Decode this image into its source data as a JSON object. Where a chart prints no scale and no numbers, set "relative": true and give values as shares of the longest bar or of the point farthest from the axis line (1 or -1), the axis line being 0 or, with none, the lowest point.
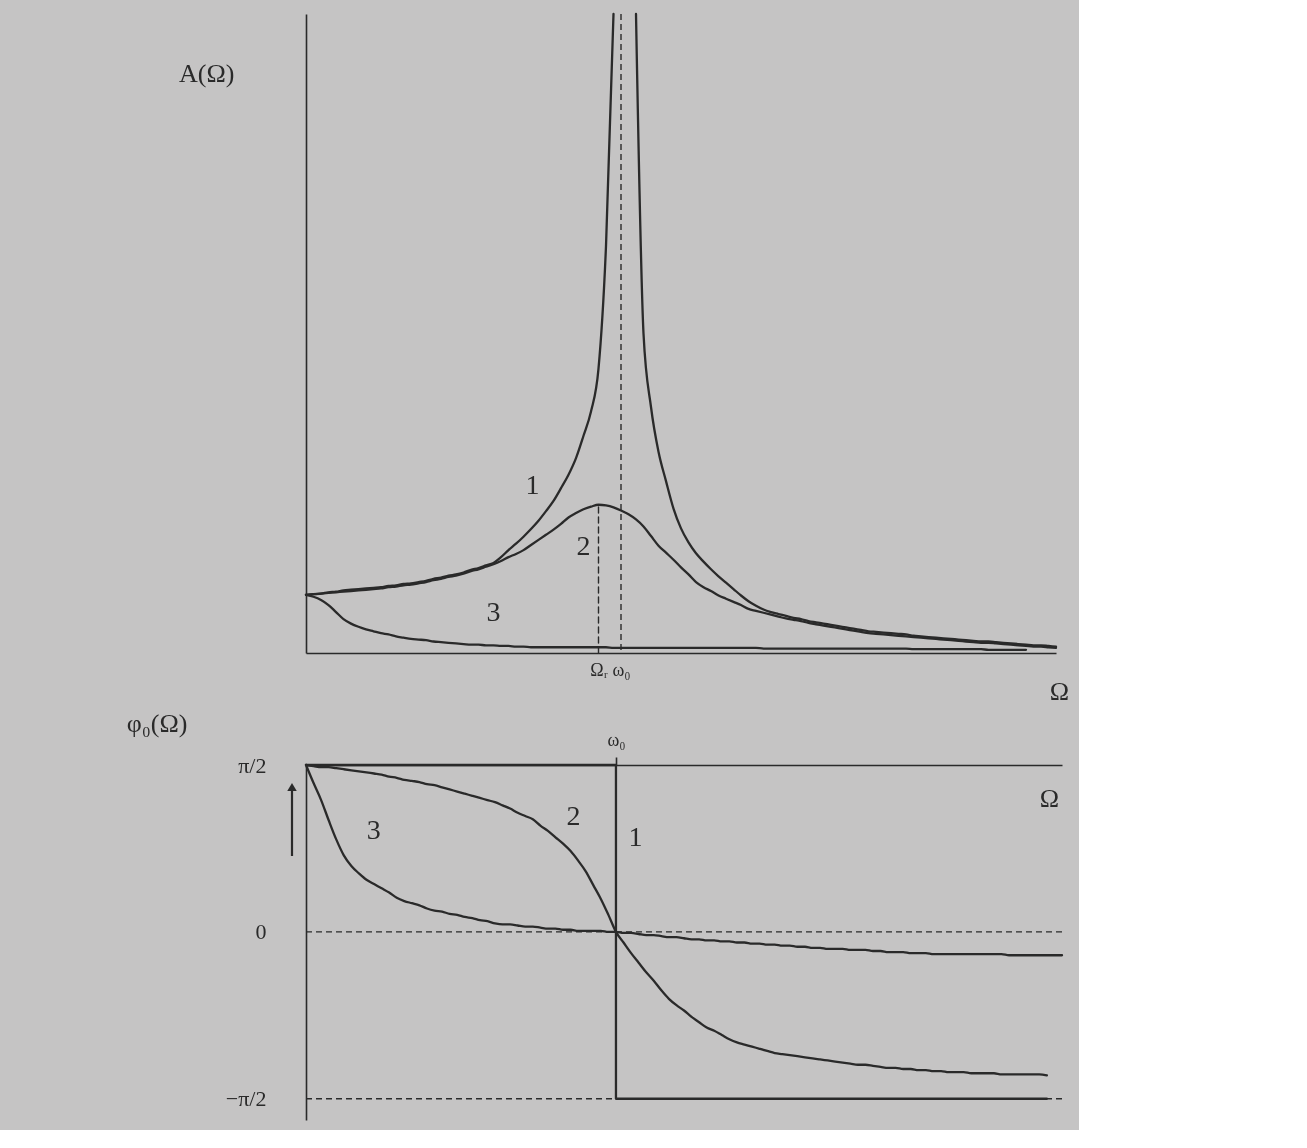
{
  "chart_data": [
    {
      "type": "line",
      "relative": true,
      "ylabel": "A(Ω)",
      "xlabel": "Ω",
      "categories": [
        null,
        null,
        null,
        null,
        null,
        null,
        null,
        null,
        null,
        null,
        null,
        null,
        null,
        null,
        null,
        null,
        null,
        null,
        null,
        null,
        null,
        null,
        null,
        null,
        null,
        null,
        null,
        null,
        null,
        null,
        null,
        null,
        null,
        null,
        null,
        null,
        null,
        null,
        null,
        "Ωᵣ",
        null,
        null,
        "ω₀",
        null,
        null,
        null,
        null,
        null,
        null,
        null,
        null,
        null,
        null,
        null,
        null,
        null,
        null,
        null,
        null,
        null,
        null,
        null,
        null,
        null,
        null,
        null,
        null,
        null,
        null,
        null,
        null,
        null,
        null,
        null,
        null,
        null,
        null,
        null,
        null,
        null,
        null,
        null,
        null,
        null,
        null,
        null,
        null,
        null,
        null,
        null,
        null,
        null,
        null,
        null,
        null,
        null,
        null,
        null,
        null,
        null,
        null
      ],
      "series": [
        {
          "name": "1",
          "color": "#2a2a2a",
          "values": [
            0.091,
            0.092,
            0.093,
            0.095,
            0.096,
            0.098,
            0.099,
            0.1,
            0.101,
            0.102,
            0.103,
            0.105,
            0.106,
            0.108,
            0.109,
            0.111,
            0.113,
            0.116,
            0.118,
            0.121,
            0.123,
            0.126,
            0.13,
            0.133,
            0.137,
            0.141,
            0.15,
            0.161,
            0.171,
            0.182,
            0.194,
            0.207,
            0.222,
            0.238,
            0.258,
            0.279,
            0.305,
            0.34,
            0.378,
            0.445,
            0.637,
            1,
            null,
            null,
            null,
            null,
            null,
            null,
            null,
            null,
            null,
            null,
            null,
            null,
            null,
            null,
            null,
            null,
            null,
            null,
            null,
            null,
            null,
            null,
            null,
            null,
            null,
            null,
            null,
            null,
            null,
            null,
            null,
            null,
            null,
            null,
            null,
            null,
            null,
            null,
            null,
            null,
            null,
            null,
            null,
            null,
            null,
            null,
            null,
            null,
            null,
            null,
            null,
            null,
            null,
            null,
            null,
            null,
            null,
            null,
            null
          ]
        },
        {
          "name": "2",
          "color": "#2a2a2a",
          "values": [
            0.091,
            0.092,
            0.093,
            0.094,
            0.095,
            0.096,
            0.097,
            0.098,
            0.099,
            0.1,
            0.101,
            0.103,
            0.104,
            0.106,
            0.107,
            0.109,
            0.111,
            0.114,
            0.116,
            0.119,
            0.121,
            0.124,
            0.128,
            0.131,
            0.135,
            0.139,
            0.144,
            0.15,
            0.155,
            0.161,
            0.169,
            0.177,
            0.185,
            0.193,
            0.202,
            0.212,
            0.219,
            0.225,
            0.229,
            0.232,
            0.231,
            0.228,
            0.223,
            0.217,
            0.209,
            0.198,
            0.183,
            0.168,
            0.157,
            0.146,
            0.134,
            0.123,
            0.111,
            0.103,
            0.097,
            0.09,
            0.085,
            0.08,
            0.075,
            0.069,
            0.066,
            0.063,
            0.06,
            0.057,
            0.054,
            0.052,
            0.05,
            0.047,
            0.045,
            0.043,
            0.041,
            0.039,
            0.037,
            0.035,
            0.033,
            0.031,
            0.03,
            0.029,
            0.028,
            0.027,
            0.026,
            0.025,
            0.024,
            0.023,
            0.022,
            0.021,
            0.02,
            0.019,
            0.018,
            0.017,
            0.016,
            0.016,
            0.015,
            0.014,
            0.013,
            0.012,
            0.011,
            0.01,
            0.01,
            0.009,
            0.008
          ]
        },
        {
          "name": "3",
          "color": "#2a2a2a",
          "values": [
            0.091,
            0.088,
            0.083,
            0.075,
            0.064,
            0.053,
            0.046,
            0.041,
            0.037,
            0.034,
            0.031,
            0.029,
            0.026,
            0.024,
            0.022,
            0.021,
            0.02,
            0.018,
            0.017,
            0.016,
            0.015,
            0.014,
            0.013,
            0.013,
            0.012,
            0.012,
            0.011,
            0.011,
            0.01,
            0.01,
            0.009,
            0.009,
            0.009,
            0.009,
            0.009,
            0.009,
            0.009,
            0.009,
            0.009,
            0.009,
            0.009,
            0.008,
            0.008,
            0.008,
            0.008,
            0.008,
            0.008,
            0.008,
            0.008,
            0.008,
            0.008,
            0.008,
            0.008,
            0.008,
            0.008,
            0.008,
            0.008,
            0.008,
            0.008,
            0.008,
            0.008,
            0.007,
            0.007,
            0.007,
            0.007,
            0.007,
            0.007,
            0.007,
            0.007,
            0.007,
            0.007,
            0.007,
            0.007,
            0.007,
            0.007,
            0.007,
            0.007,
            0.007,
            0.007,
            0.007,
            0.007,
            0.006,
            0.006,
            0.006,
            0.006,
            0.006,
            0.006,
            0.006,
            0.006,
            0.006,
            0.006,
            0.005,
            0.005,
            0.005,
            0.005,
            0.005,
            0.005,
            null,
            null,
            null,
            null
          ]
        },
        {
          "color": "#2a2a2a",
          "values": [
            null,
            null,
            null,
            null,
            null,
            null,
            null,
            null,
            null,
            null,
            null,
            null,
            null,
            null,
            null,
            null,
            null,
            null,
            null,
            null,
            null,
            null,
            null,
            null,
            null,
            null,
            null,
            null,
            null,
            null,
            null,
            null,
            null,
            null,
            null,
            null,
            null,
            null,
            null,
            null,
            null,
            null,
            null,
            null,
            1,
            0.5,
            0.385,
            0.315,
            0.269,
            0.226,
            0.195,
            0.173,
            0.156,
            0.143,
            0.131,
            0.12,
            0.11,
            0.1,
            0.09,
            0.081,
            0.074,
            0.068,
            0.064,
            0.061,
            0.058,
            0.055,
            0.053,
            0.05,
            0.048,
            0.046,
            0.044,
            0.042,
            0.04,
            0.038,
            0.036,
            0.034,
            0.033,
            0.032,
            0.031,
            0.03,
            0.029,
            0.027,
            0.026,
            0.025,
            0.024,
            0.023,
            0.022,
            0.021,
            0.02,
            0.019,
            0.018,
            0.018,
            0.017,
            0.016,
            0.015,
            0.014,
            0.013,
            0.012,
            0.012,
            0.011,
            0.01
          ]
        },
        {
          "type": "line",
          "line_style": "dashed",
          "color": "#2a2a2a",
          "x": [
            "Ωᵣ",
            "Ωᵣ"
          ],
          "values": [
            0,
            0.232
          ]
        }
      ],
      "ref_lines": [
        {
          "axis": "x",
          "value": "ω₀",
          "line_style": "dashed",
          "color": "#2a2a2a"
        }
      ]
    },
    {
      "type": "line",
      "ylabel": "φ₀(Ω)",
      "xlabel": "Ω",
      "ylim": [
        -1.77,
        1.57
      ],
      "yticks": [
        {
          "value": 1.57,
          "label": "π/2"
        },
        0,
        {
          "value": -1.57,
          "label": "−π/2"
        }
      ],
      "categories": [
        null,
        null,
        null,
        null,
        null,
        null,
        null,
        null,
        null,
        null,
        null,
        null,
        null,
        null,
        null,
        null,
        null,
        null,
        null,
        null,
        null,
        null,
        null,
        null,
        null,
        null,
        null,
        null,
        null,
        null,
        null,
        null,
        null,
        null,
        null,
        null,
        null,
        null,
        null,
        null,
        null,
        "ω₀",
        null,
        null,
        null,
        null,
        null,
        null,
        null,
        null,
        null,
        null,
        null,
        null,
        null,
        null,
        null,
        null,
        null,
        null,
        null,
        null,
        null,
        null,
        null,
        null,
        null,
        null,
        null,
        null,
        null,
        null,
        null,
        null,
        null,
        null,
        null,
        null,
        null,
        null,
        null,
        null,
        null,
        null,
        null,
        null,
        null,
        null,
        null,
        null,
        null,
        null,
        null,
        null,
        null,
        null,
        null,
        null,
        null,
        null,
        null
      ],
      "series": [
        {
          "name": "1",
          "type": "step",
          "color": "#2a2a2a",
          "values": [
            1.57,
            1.57,
            1.57,
            1.57,
            1.57,
            1.57,
            1.57,
            1.57,
            1.57,
            1.57,
            1.57,
            1.57,
            1.57,
            1.57,
            1.57,
            1.57,
            1.57,
            1.57,
            1.57,
            1.57,
            1.57,
            1.57,
            1.57,
            1.57,
            1.57,
            1.57,
            1.57,
            1.57,
            1.57,
            1.57,
            1.57,
            1.57,
            1.57,
            1.57,
            1.57,
            1.57,
            1.57,
            1.57,
            1.57,
            1.57,
            1.57,
            -1.57,
            -1.57,
            -1.57,
            -1.57,
            -1.57,
            -1.57,
            -1.57,
            -1.57,
            -1.57,
            -1.57,
            -1.57,
            -1.57,
            -1.57,
            -1.57,
            -1.57,
            -1.57,
            -1.57,
            -1.57,
            -1.57,
            -1.57,
            -1.57,
            -1.57,
            -1.57,
            -1.57,
            -1.57,
            -1.57,
            -1.57,
            -1.57,
            -1.57,
            -1.57,
            -1.57,
            -1.57,
            -1.57,
            -1.57,
            -1.57,
            -1.57,
            -1.57,
            -1.57,
            -1.57,
            -1.57,
            -1.57,
            -1.57,
            -1.57,
            -1.57,
            -1.57,
            -1.57,
            -1.57,
            -1.57,
            -1.57,
            -1.57,
            -1.57,
            -1.57,
            -1.57,
            -1.57,
            -1.57,
            -1.57,
            -1.57,
            -1.57,
            null,
            null
          ]
        },
        {
          "name": "2",
          "color": "#2a2a2a",
          "values": [
            1.57,
            1.56,
            1.55,
            1.55,
            1.54,
            1.53,
            1.52,
            1.51,
            1.5,
            1.49,
            1.48,
            1.46,
            1.45,
            1.43,
            1.42,
            1.41,
            1.39,
            1.38,
            1.36,
            1.34,
            1.32,
            1.3,
            1.28,
            1.26,
            1.24,
            1.22,
            1.19,
            1.16,
            1.12,
            1.09,
            1.06,
            1.0,
            0.95,
            0.89,
            0.83,
            0.76,
            0.67,
            0.57,
            0.44,
            0.31,
            0.16,
            0,
            -0.1,
            -0.2,
            -0.29,
            -0.38,
            -0.46,
            -0.55,
            -0.63,
            -0.69,
            -0.74,
            -0.8,
            -0.85,
            -0.9,
            -0.93,
            -0.97,
            -1.01,
            -1.04,
            -1.06,
            -1.08,
            -1.1,
            -1.12,
            -1.14,
            -1.15,
            -1.16,
            -1.17,
            -1.18,
            -1.19,
            -1.2,
            -1.21,
            -1.22,
            -1.23,
            -1.24,
            -1.25,
            -1.25,
            -1.26,
            -1.27,
            -1.28,
            -1.28,
            -1.29,
            -1.29,
            -1.3,
            -1.3,
            -1.31,
            -1.31,
            -1.32,
            -1.32,
            -1.32,
            -1.33,
            -1.33,
            -1.33,
            -1.33,
            -1.34,
            -1.34,
            -1.34,
            -1.34,
            -1.34,
            -1.34,
            -1.35,
            null,
            null
          ]
        },
        {
          "name": "3",
          "color": "#2a2a2a",
          "values": [
            1.57,
            1.4,
            1.24,
            1.05,
            0.87,
            0.72,
            0.62,
            0.55,
            0.49,
            0.45,
            0.41,
            0.37,
            0.32,
            0.29,
            0.27,
            0.25,
            0.22,
            0.2,
            0.19,
            0.17,
            0.16,
            0.14,
            0.13,
            0.11,
            0.1,
            0.08,
            0.07,
            0.07,
            0.06,
            0.05,
            0.05,
            0.04,
            0.03,
            0.03,
            0.02,
            0.02,
            0.01,
            0.01,
            0.01,
            0.01,
            0.0,
            0,
            -0.01,
            -0.01,
            -0.02,
            -0.03,
            -0.03,
            -0.04,
            -0.05,
            -0.05,
            -0.06,
            -0.07,
            -0.07,
            -0.08,
            -0.08,
            -0.09,
            -0.09,
            -0.1,
            -0.1,
            -0.11,
            -0.11,
            -0.12,
            -0.12,
            -0.13,
            -0.13,
            -0.14,
            -0.14,
            -0.15,
            -0.15,
            -0.16,
            -0.16,
            -0.16,
            -0.17,
            -0.17,
            -0.17,
            -0.18,
            -0.18,
            -0.19,
            -0.19,
            -0.19,
            -0.2,
            -0.2,
            -0.2,
            -0.21,
            -0.21,
            -0.21,
            -0.21,
            -0.21,
            -0.21,
            -0.21,
            -0.21,
            -0.21,
            -0.21,
            -0.22,
            -0.22,
            -0.22,
            -0.22,
            -0.22,
            -0.22,
            -0.22,
            -0.22
          ]
        }
      ],
      "ref_lines": [
        {
          "axis": "y",
          "value": 0,
          "line_style": "dashed",
          "color": "#2a2a2a"
        },
        {
          "axis": "y",
          "value": -1.57,
          "line_style": "dashed",
          "color": "#2a2a2a"
        }
      ]
    }
  ]
}
